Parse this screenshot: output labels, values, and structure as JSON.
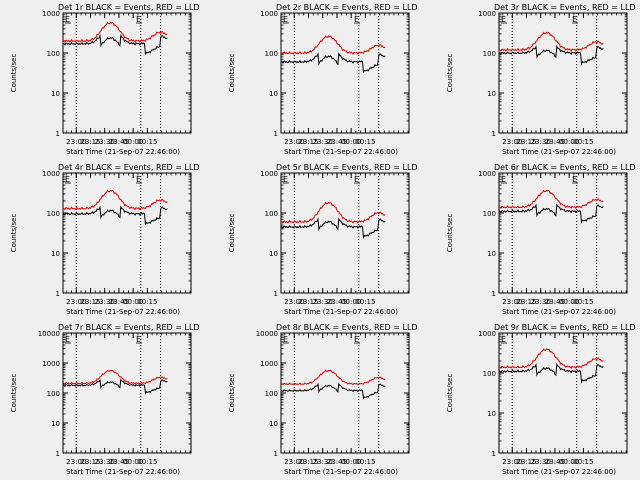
{
  "page": {
    "background": "#efefef"
  },
  "colors": {
    "events": "#000000",
    "lld": "#e00000",
    "axis": "#000000",
    "marker": "#000000"
  },
  "chart_data": [
    {
      "type": "line",
      "title": "Det 1r  BLACK = Events, RED = LLD",
      "xlabel": "Start Time (21-Sep-07 22:46:00)",
      "ylabel": "Counts/sec",
      "x_range_min": [
        0,
        45
      ],
      "y_scale": "log",
      "ylim": [
        1,
        1000
      ],
      "y_ticks": [
        1,
        10,
        100,
        1000
      ],
      "y_tick_labels": [
        "1",
        "10",
        "100",
        "1000"
      ],
      "x_ticks": [
        14,
        29,
        44,
        59,
        74,
        89
      ],
      "x_tick_labels": [
        "23:00",
        "23:15",
        "23:30",
        "23:45",
        "00:00",
        "00:15"
      ],
      "saa_lines": [
        14,
        82,
        103
      ],
      "markers": [
        {
          "x": -4,
          "label": "E"
        },
        {
          "x": 76,
          "label": "E"
        }
      ],
      "series": [
        {
          "name": "Events",
          "color": "#000000",
          "start": 0,
          "end": 110,
          "base": 170,
          "peak": 430,
          "dips": [
            [
              40,
              60,
              0.55
            ],
            [
              87,
              102,
              0.55
            ]
          ]
        },
        {
          "name": "LLD",
          "color": "#e00000",
          "start": 0,
          "end": 110,
          "base": 200,
          "peak": 570,
          "dips": []
        }
      ]
    },
    {
      "type": "line",
      "title": "Det 2r  BLACK = Events, RED = LLD",
      "xlabel": "Start Time (21-Sep-07 22:46:00)",
      "ylabel": "Counts/sec",
      "x_range_min": [
        0,
        45
      ],
      "y_scale": "log",
      "ylim": [
        1,
        1000
      ],
      "y_ticks": [
        1,
        10,
        100,
        1000
      ],
      "y_tick_labels": [
        "1",
        "10",
        "100",
        "1000"
      ],
      "x_ticks": [
        14,
        29,
        44,
        59,
        74,
        89
      ],
      "x_tick_labels": [
        "23:00",
        "23:15",
        "23:30",
        "23:45",
        "00:00",
        "00:15"
      ],
      "saa_lines": [
        14,
        82,
        103
      ],
      "markers": [
        {
          "x": -4,
          "label": "E"
        },
        {
          "x": 76,
          "label": "E"
        }
      ],
      "series": [
        {
          "name": "Events",
          "color": "#000000",
          "start": 0,
          "end": 110,
          "base": 60,
          "peak": 150,
          "dips": [
            [
              40,
              60,
              0.55
            ],
            [
              87,
              102,
              0.55
            ]
          ]
        },
        {
          "name": "LLD",
          "color": "#e00000",
          "start": 0,
          "end": 110,
          "base": 100,
          "peak": 260,
          "dips": []
        }
      ]
    },
    {
      "type": "line",
      "title": "Det 3r  BLACK = Events, RED = LLD",
      "xlabel": "Start Time (21-Sep-07 22:46:00)",
      "ylabel": "Counts/sec",
      "x_range_min": [
        0,
        45
      ],
      "y_scale": "log",
      "ylim": [
        1,
        1000
      ],
      "y_ticks": [
        1,
        10,
        100,
        1000
      ],
      "y_tick_labels": [
        "1",
        "10",
        "100",
        "1000"
      ],
      "x_ticks": [
        14,
        29,
        44,
        59,
        74,
        89
      ],
      "x_tick_labels": [
        "23:00",
        "23:15",
        "23:30",
        "23:45",
        "00:00",
        "00:15"
      ],
      "saa_lines": [
        14,
        82,
        103
      ],
      "markers": [
        {
          "x": -4,
          "label": "E"
        },
        {
          "x": 76,
          "label": "E"
        }
      ],
      "series": [
        {
          "name": "Events",
          "color": "#000000",
          "start": 0,
          "end": 110,
          "base": 100,
          "peak": 210,
          "dips": [
            [
              40,
              60,
              0.55
            ],
            [
              87,
              102,
              0.55
            ]
          ]
        },
        {
          "name": "LLD",
          "color": "#e00000",
          "start": 0,
          "end": 110,
          "base": 120,
          "peak": 320,
          "dips": []
        }
      ]
    },
    {
      "type": "line",
      "title": "Det 4r  BLACK = Events, RED = LLD",
      "xlabel": "Start Time (21-Sep-07 22:46:00)",
      "ylabel": "Counts/sec",
      "x_range_min": [
        0,
        45
      ],
      "y_scale": "log",
      "ylim": [
        1,
        1000
      ],
      "y_ticks": [
        1,
        10,
        100,
        1000
      ],
      "y_tick_labels": [
        "1",
        "10",
        "100",
        "1000"
      ],
      "x_ticks": [
        14,
        29,
        44,
        59,
        74,
        89
      ],
      "x_tick_labels": [
        "23:00",
        "23:15",
        "23:30",
        "23:45",
        "00:00",
        "00:15"
      ],
      "saa_lines": [
        14,
        82,
        103
      ],
      "markers": [
        {
          "x": -4,
          "label": "E"
        },
        {
          "x": 76,
          "label": "E"
        }
      ],
      "series": [
        {
          "name": "Events",
          "color": "#000000",
          "start": 0,
          "end": 110,
          "base": 95,
          "peak": 210,
          "dips": [
            [
              40,
              60,
              0.55
            ],
            [
              87,
              102,
              0.55
            ]
          ]
        },
        {
          "name": "LLD",
          "color": "#e00000",
          "start": 0,
          "end": 110,
          "base": 130,
          "peak": 360,
          "dips": []
        }
      ]
    },
    {
      "type": "line",
      "title": "Det 5r  BLACK = Events, RED = LLD",
      "xlabel": "Start Time (21-Sep-07 22:46:00)",
      "ylabel": "Counts/sec",
      "x_range_min": [
        0,
        45
      ],
      "y_scale": "log",
      "ylim": [
        1,
        1000
      ],
      "y_ticks": [
        1,
        10,
        100,
        1000
      ],
      "y_tick_labels": [
        "1",
        "10",
        "100",
        "1000"
      ],
      "x_ticks": [
        14,
        29,
        44,
        59,
        74,
        89
      ],
      "x_tick_labels": [
        "23:00",
        "23:15",
        "23:30",
        "23:45",
        "00:00",
        "00:15"
      ],
      "saa_lines": [
        14,
        82,
        103
      ],
      "markers": [
        {
          "x": -4,
          "label": "E"
        },
        {
          "x": 76,
          "label": "E"
        }
      ],
      "series": [
        {
          "name": "Events",
          "color": "#000000",
          "start": 0,
          "end": 110,
          "base": 45,
          "peak": 110,
          "dips": [
            [
              40,
              60,
              0.55
            ],
            [
              87,
              102,
              0.55
            ]
          ]
        },
        {
          "name": "LLD",
          "color": "#e00000",
          "start": 0,
          "end": 110,
          "base": 60,
          "peak": 180,
          "dips": []
        }
      ]
    },
    {
      "type": "line",
      "title": "Det 6r  BLACK = Events, RED = LLD",
      "xlabel": "Start Time (21-Sep-07 22:46:00)",
      "ylabel": "Counts/sec",
      "x_range_min": [
        0,
        45
      ],
      "y_scale": "log",
      "ylim": [
        1,
        1000
      ],
      "y_ticks": [
        1,
        10,
        100,
        1000
      ],
      "y_tick_labels": [
        "1",
        "10",
        "100",
        "1000"
      ],
      "x_ticks": [
        14,
        29,
        44,
        59,
        74,
        89
      ],
      "x_tick_labels": [
        "23:00",
        "23:15",
        "23:30",
        "23:45",
        "00:00",
        "00:15"
      ],
      "saa_lines": [
        14,
        82,
        103
      ],
      "markers": [
        {
          "x": -4,
          "label": "E"
        },
        {
          "x": 76,
          "label": "E"
        }
      ],
      "series": [
        {
          "name": "Events",
          "color": "#000000",
          "start": 0,
          "end": 110,
          "base": 110,
          "peak": 230,
          "dips": [
            [
              40,
              60,
              0.55
            ],
            [
              87,
              102,
              0.55
            ]
          ]
        },
        {
          "name": "LLD",
          "color": "#e00000",
          "start": 0,
          "end": 110,
          "base": 140,
          "peak": 360,
          "dips": []
        }
      ]
    },
    {
      "type": "line",
      "title": "Det 7r  BLACK = Events, RED = LLD",
      "xlabel": "Start Time (21-Sep-07 22:46:00)",
      "ylabel": "Counts/sec",
      "x_range_min": [
        0,
        45
      ],
      "y_scale": "log",
      "ylim": [
        1,
        10000
      ],
      "y_ticks": [
        1,
        10,
        100,
        1000,
        10000
      ],
      "y_tick_labels": [
        "1",
        "10",
        "100",
        "1000",
        "10000"
      ],
      "x_ticks": [
        14,
        29,
        44,
        59,
        74,
        89
      ],
      "x_tick_labels": [
        "23:00",
        "23:15",
        "23:30",
        "23:45",
        "00:00",
        "00:15"
      ],
      "saa_lines": [
        14,
        82,
        103
      ],
      "markers": [
        {
          "x": -4,
          "label": "E"
        },
        {
          "x": 76,
          "label": "E"
        }
      ],
      "series": [
        {
          "name": "Events",
          "color": "#000000",
          "start": 0,
          "end": 110,
          "base": 180,
          "peak": 420,
          "dips": [
            [
              40,
              60,
              0.55
            ],
            [
              87,
              102,
              0.55
            ]
          ]
        },
        {
          "name": "LLD",
          "color": "#e00000",
          "start": 0,
          "end": 110,
          "base": 210,
          "peak": 560,
          "dips": []
        }
      ]
    },
    {
      "type": "line",
      "title": "Det 8r  BLACK = Events, RED = LLD",
      "xlabel": "Start Time (21-Sep-07 22:46:00)",
      "ylabel": "Counts/sec",
      "x_range_min": [
        0,
        45
      ],
      "y_scale": "log",
      "ylim": [
        1,
        10000
      ],
      "y_ticks": [
        1,
        10,
        100,
        1000,
        10000
      ],
      "y_tick_labels": [
        "1",
        "10",
        "100",
        "1000",
        "10000"
      ],
      "x_ticks": [
        14,
        29,
        44,
        59,
        74,
        89
      ],
      "x_tick_labels": [
        "23:00",
        "23:15",
        "23:30",
        "23:45",
        "00:00",
        "00:15"
      ],
      "saa_lines": [
        14,
        82,
        103
      ],
      "markers": [
        {
          "x": -4,
          "label": "E"
        },
        {
          "x": 76,
          "label": "E"
        }
      ],
      "series": [
        {
          "name": "Events",
          "color": "#000000",
          "start": 0,
          "end": 110,
          "base": 120,
          "peak": 320,
          "dips": [
            [
              40,
              60,
              0.55
            ],
            [
              87,
              102,
              0.55
            ]
          ]
        },
        {
          "name": "LLD",
          "color": "#e00000",
          "start": 0,
          "end": 110,
          "base": 200,
          "peak": 560,
          "dips": []
        }
      ]
    },
    {
      "type": "line",
      "title": "Det 9r  BLACK = Events, RED = LLD",
      "xlabel": "Start Time (21-Sep-07 22:46:00)",
      "ylabel": "Counts/sec",
      "x_range_min": [
        0,
        45
      ],
      "y_scale": "log",
      "ylim": [
        1,
        1000
      ],
      "y_ticks": [
        1,
        10,
        100,
        1000
      ],
      "y_tick_labels": [
        "1",
        "10",
        "100",
        "1000"
      ],
      "x_ticks": [
        14,
        29,
        44,
        59,
        74,
        89
      ],
      "x_tick_labels": [
        "23:00",
        "23:15",
        "23:30",
        "23:45",
        "00:00",
        "00:15"
      ],
      "saa_lines": [
        14,
        82,
        103
      ],
      "markers": [
        {
          "x": -4,
          "label": "E"
        },
        {
          "x": 76,
          "label": "E"
        }
      ],
      "series": [
        {
          "name": "Events",
          "color": "#000000",
          "start": 0,
          "end": 110,
          "base": 110,
          "peak": 240,
          "dips": [
            [
              40,
              60,
              0.55
            ],
            [
              87,
              102,
              0.55
            ]
          ]
        },
        {
          "name": "LLD",
          "color": "#e00000",
          "start": 0,
          "end": 110,
          "base": 140,
          "peak": 390,
          "dips": []
        }
      ]
    }
  ]
}
